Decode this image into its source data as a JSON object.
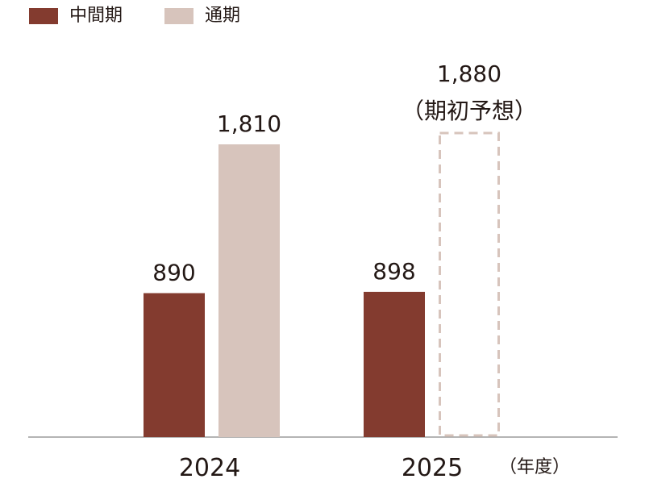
{
  "legend": {
    "items": [
      {
        "label": "中間期",
        "color": "#833b2f"
      },
      {
        "label": "通期",
        "color": "#d7c4bc"
      }
    ]
  },
  "chart_data": {
    "type": "bar",
    "categories": [
      "2024",
      "2025"
    ],
    "x_unit_label": "（年度）",
    "ylim": [
      0,
      2000
    ],
    "grid": false,
    "legend_position": "top-left",
    "series": [
      {
        "name": "中間期",
        "color": "#833b2f",
        "values": [
          890,
          898
        ],
        "labels": [
          "890",
          "898"
        ]
      },
      {
        "name": "通期",
        "color": "#d7c4bc",
        "values": [
          1810,
          1880
        ],
        "labels": [
          "1,810",
          "1,880"
        ],
        "forecast": [
          false,
          true
        ]
      }
    ],
    "annotations": [
      {
        "category": "2025",
        "series": "通期",
        "text": "（期初予想）"
      }
    ]
  }
}
